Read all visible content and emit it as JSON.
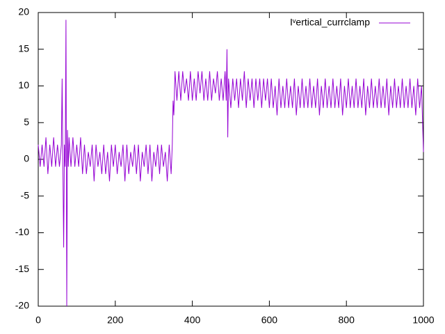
{
  "chart_data": {
    "type": "line",
    "xlim": [
      0,
      1000
    ],
    "xticks": [
      0,
      200,
      400,
      600,
      800,
      1000
    ],
    "ylim": [
      -20,
      20
    ],
    "yticks": [
      -20,
      -15,
      -10,
      -5,
      0,
      5,
      10,
      15,
      20
    ],
    "legend": "top-right",
    "x": [
      0,
      5,
      10,
      15,
      20,
      25,
      30,
      35,
      40,
      45,
      50,
      55,
      60,
      62,
      64,
      66,
      68,
      70,
      72,
      74,
      76,
      78,
      80,
      85,
      90,
      95,
      100,
      105,
      110,
      115,
      120,
      125,
      130,
      135,
      140,
      145,
      150,
      155,
      160,
      165,
      170,
      175,
      180,
      185,
      190,
      195,
      200,
      205,
      210,
      215,
      220,
      225,
      230,
      235,
      240,
      245,
      250,
      255,
      260,
      265,
      270,
      275,
      280,
      285,
      290,
      295,
      300,
      305,
      310,
      315,
      320,
      325,
      330,
      335,
      340,
      345,
      348,
      350,
      352,
      355,
      360,
      365,
      370,
      375,
      380,
      385,
      390,
      395,
      400,
      405,
      410,
      415,
      420,
      425,
      430,
      435,
      440,
      445,
      450,
      455,
      460,
      465,
      470,
      475,
      480,
      485,
      488,
      490,
      492,
      494,
      500,
      505,
      510,
      515,
      520,
      525,
      530,
      535,
      540,
      545,
      550,
      555,
      560,
      565,
      570,
      575,
      580,
      585,
      590,
      595,
      600,
      605,
      610,
      615,
      620,
      625,
      630,
      635,
      640,
      645,
      650,
      655,
      660,
      665,
      670,
      675,
      680,
      685,
      690,
      695,
      700,
      705,
      710,
      715,
      720,
      725,
      730,
      735,
      740,
      745,
      750,
      755,
      760,
      765,
      770,
      775,
      780,
      785,
      790,
      795,
      800,
      805,
      810,
      815,
      820,
      825,
      830,
      835,
      840,
      845,
      850,
      855,
      860,
      865,
      870,
      875,
      880,
      885,
      890,
      895,
      900,
      905,
      910,
      915,
      920,
      925,
      930,
      935,
      940,
      945,
      950,
      955,
      960,
      965,
      970,
      975,
      980,
      985,
      990,
      995,
      1000
    ],
    "series": [
      {
        "name": "Iᵛertical_currclamp",
        "color": "#9400d3",
        "values": [
          2,
          -1,
          2,
          -1,
          3,
          -2,
          2,
          -1,
          3,
          -1,
          2,
          -1,
          2,
          11,
          -1,
          -12,
          2,
          -1,
          19,
          -20,
          4,
          -1,
          3,
          -1,
          3,
          -1,
          2,
          -1,
          3,
          -2,
          2,
          -2,
          1,
          -1,
          2,
          -3,
          2,
          -1,
          1,
          -2,
          2,
          -2,
          1,
          -3,
          2,
          -1,
          2,
          -2,
          1,
          -1,
          2,
          -3,
          2,
          -2,
          1,
          -1,
          2,
          -2,
          2,
          -3,
          1,
          -1,
          2,
          -2,
          2,
          -3,
          1,
          -1,
          2,
          -2,
          2,
          -1,
          1,
          -3,
          2,
          -2,
          2,
          8,
          6,
          12,
          8,
          12,
          8,
          12,
          9,
          11,
          8,
          12,
          8,
          11,
          8,
          12,
          9,
          12,
          8,
          11,
          8,
          12,
          8,
          11,
          9,
          12,
          8,
          11,
          8,
          12,
          8,
          15,
          3,
          11,
          7,
          11,
          8,
          11,
          7,
          11,
          8,
          12,
          7,
          11,
          8,
          11,
          7,
          11,
          8,
          11,
          7,
          11,
          8,
          11,
          7,
          11,
          7,
          10,
          6,
          11,
          7,
          10,
          7,
          11,
          7,
          10,
          7,
          11,
          6,
          10,
          7,
          11,
          7,
          10,
          7,
          11,
          7,
          10,
          7,
          11,
          6,
          10,
          7,
          11,
          7,
          10,
          7,
          11,
          7,
          10,
          7,
          11,
          6,
          10,
          7,
          11,
          7,
          10,
          7,
          11,
          7,
          10,
          7,
          11,
          6,
          10,
          7,
          11,
          7,
          10,
          7,
          11,
          7,
          10,
          7,
          11,
          6,
          10,
          7,
          11,
          7,
          10,
          7,
          11,
          7,
          10,
          7,
          11,
          7,
          10,
          6,
          11,
          7,
          10,
          1
        ]
      }
    ]
  }
}
